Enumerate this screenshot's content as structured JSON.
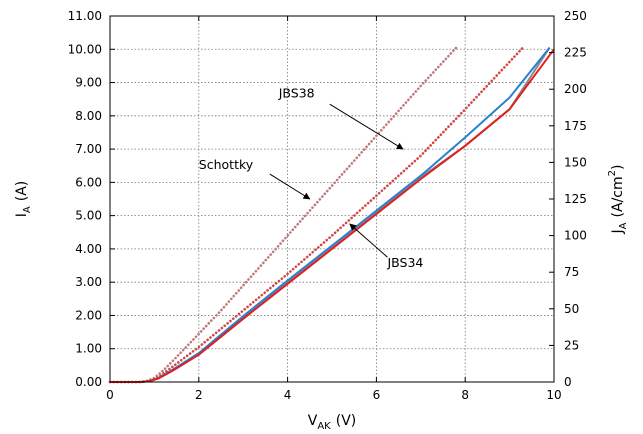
{
  "chart_data": {
    "type": "line",
    "title": "",
    "xlabel": {
      "main": "V",
      "sub": "AK",
      "unit": "(V)"
    },
    "ylabel_left": {
      "main": "I",
      "sub": "A",
      "unit": "(A)"
    },
    "ylabel_right": {
      "main": "J",
      "sub": "A",
      "unit": "(A/cm",
      "sup": "2",
      "close": ")"
    },
    "xlim": [
      0,
      10
    ],
    "ylim_left": [
      0,
      11
    ],
    "ylim_right": [
      0,
      250
    ],
    "x_ticks": [
      "0",
      "2",
      "4",
      "6",
      "8",
      "10"
    ],
    "y_left_ticks": [
      "0.00",
      "1.00",
      "2.00",
      "3.00",
      "4.00",
      "5.00",
      "6.00",
      "7.00",
      "8.00",
      "9.00",
      "10.00",
      "11.00"
    ],
    "y_right_ticks": [
      "0",
      "25",
      "50",
      "75",
      "100",
      "125",
      "150",
      "175",
      "200",
      "225",
      "250"
    ],
    "grid": true,
    "series": [
      {
        "color": "#c07a7a",
        "style": "dotted",
        "x": [
          0,
          0.6,
          0.8,
          1.0,
          1.2,
          1.5,
          2.0,
          2.5,
          3.0,
          4.0,
          5.0,
          6.0,
          7.0,
          7.8
        ],
        "y": [
          0,
          0,
          0.02,
          0.12,
          0.35,
          0.75,
          1.45,
          2.15,
          2.9,
          4.4,
          5.9,
          7.4,
          8.9,
          10.05
        ]
      },
      {
        "color": "#d04848",
        "style": "dotted",
        "x": [
          0,
          0.7,
          0.9,
          1.1,
          1.4,
          2.0,
          3.0,
          4.0,
          5.0,
          6.0,
          7.0,
          8.0,
          9.3
        ],
        "y": [
          0,
          0,
          0.03,
          0.15,
          0.45,
          1.05,
          2.15,
          3.25,
          4.4,
          5.6,
          6.8,
          8.2,
          10.05
        ]
      },
      {
        "color": "#8a8a8a",
        "style": "solid",
        "x": [
          0,
          0.7,
          0.9,
          1.1,
          1.4,
          2.0,
          3.0,
          4.0,
          5.0,
          6.0,
          7.0,
          8.0,
          9.0,
          9.9
        ],
        "y": [
          0,
          0,
          0.03,
          0.12,
          0.35,
          0.85,
          1.95,
          3.0,
          4.05,
          5.1,
          6.15,
          7.1,
          8.2,
          10.05
        ]
      },
      {
        "color": "#2a7fd0",
        "style": "solid",
        "x": [
          0,
          0.7,
          0.9,
          1.1,
          1.4,
          2.0,
          3.0,
          4.0,
          5.0,
          6.0,
          7.0,
          8.0,
          9.0,
          9.9
        ],
        "y": [
          0,
          0,
          0.03,
          0.12,
          0.36,
          0.87,
          1.98,
          3.05,
          4.1,
          5.15,
          6.2,
          7.35,
          8.55,
          10.05
        ]
      },
      {
        "color": "#e02020",
        "style": "solid",
        "x": [
          0,
          0.7,
          0.9,
          1.1,
          1.4,
          2.0,
          3.0,
          4.0,
          5.0,
          6.0,
          7.0,
          8.0,
          9.0,
          10.0
        ],
        "y": [
          0,
          0,
          0.03,
          0.11,
          0.33,
          0.82,
          1.9,
          2.95,
          4.0,
          5.05,
          6.1,
          7.1,
          8.2,
          10.0
        ]
      }
    ],
    "annotations": [
      {
        "text": "Schottky",
        "label_x": 2.0,
        "label_y": 6.4,
        "arrow_from_x": 3.6,
        "arrow_from_y": 6.25,
        "arrow_to_x": 4.5,
        "arrow_to_y": 5.5
      },
      {
        "text": "JBS38",
        "label_x": 3.8,
        "label_y": 8.55,
        "arrow_from_x": 4.95,
        "arrow_from_y": 8.35,
        "arrow_to_x": 6.6,
        "arrow_to_y": 7.0
      },
      {
        "text": "JBS34",
        "label_x": 6.25,
        "label_y": 3.45,
        "arrow_from_x": 6.25,
        "arrow_from_y": 3.75,
        "arrow_to_x": 5.4,
        "arrow_to_y": 4.75
      }
    ]
  }
}
